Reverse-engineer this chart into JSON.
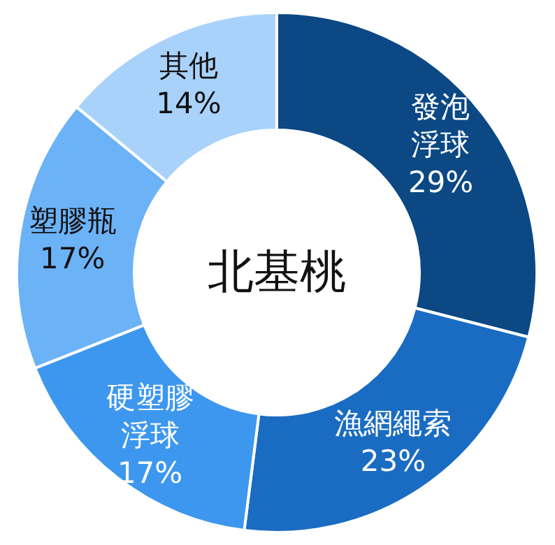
{
  "chart_data": {
    "type": "donut",
    "title": "北基桃",
    "categories": [
      "發泡浮球",
      "漁網繩索",
      "硬塑膠浮球",
      "塑膠瓶",
      "其他"
    ],
    "values": [
      29,
      23,
      17,
      17,
      14
    ],
    "colors": [
      "#0b4884",
      "#1a6cc2",
      "#3d97ee",
      "#6cb2f6",
      "#a9d2fb"
    ],
    "value_labels": [
      "29%",
      "23%",
      "17%",
      "17%",
      "14%"
    ]
  }
}
